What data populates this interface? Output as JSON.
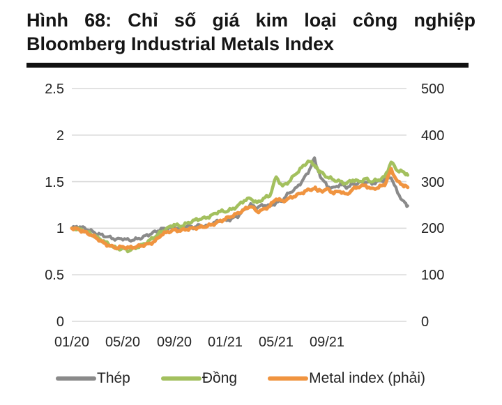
{
  "figure": {
    "title_line1": "Hình 68: Chỉ số giá kim loại công nghiệp",
    "title_line2": "Bloomberg Industrial Metals Index"
  },
  "chart_data": {
    "type": "line",
    "title": "Hình 68: Chỉ số giá kim loại công nghiệp Bloomberg Industrial Metals Index",
    "xlabel": "",
    "ylabel_left": "",
    "ylabel_right": "",
    "grid": true,
    "legend_position": "bottom",
    "x_axis": {
      "ticks": [
        "01/20",
        "05/20",
        "09/20",
        "01/21",
        "05/21",
        "09/21"
      ],
      "tick_months": [
        0,
        4,
        8,
        12,
        16,
        20
      ],
      "range_months": [
        0,
        26.3
      ]
    },
    "y_axis_left": {
      "ticks": [
        "2.5",
        "2",
        "1.5",
        "1",
        "0.5",
        "0"
      ],
      "range": [
        0,
        2.5
      ]
    },
    "y_axis_right": {
      "ticks": [
        "500",
        "400",
        "300",
        "200",
        "100",
        "0"
      ],
      "range": [
        0,
        500
      ]
    },
    "x_months": [
      0,
      0.5,
      1,
      1.5,
      2,
      2.5,
      3,
      3.5,
      4,
      4.5,
      5,
      5.5,
      6,
      6.5,
      7,
      7.5,
      8,
      8.5,
      9,
      9.5,
      10,
      10.5,
      11,
      11.5,
      12,
      12.5,
      13,
      13.5,
      14,
      14.5,
      15,
      15.5,
      16,
      16.5,
      17,
      17.5,
      18,
      18.5,
      19,
      19.25,
      19.5,
      20,
      20.5,
      21,
      21.5,
      22,
      22.5,
      23,
      23.5,
      24,
      24.5,
      25,
      25.5,
      26,
      26.3
    ],
    "x_start_label": "01/20",
    "series": [
      {
        "name": "Thép",
        "axis": "left",
        "color": "#8a8a8a",
        "values": [
          1.0,
          1.02,
          1.0,
          0.97,
          0.94,
          0.92,
          0.9,
          0.88,
          0.89,
          0.87,
          0.88,
          0.9,
          0.93,
          0.96,
          0.99,
          1.0,
          1.01,
          1.0,
          1.02,
          1.01,
          1.03,
          1.02,
          1.05,
          1.08,
          1.08,
          1.1,
          1.13,
          1.2,
          1.25,
          1.22,
          1.25,
          1.24,
          1.27,
          1.3,
          1.38,
          1.42,
          1.5,
          1.6,
          1.75,
          1.62,
          1.55,
          1.45,
          1.43,
          1.47,
          1.44,
          1.47,
          1.49,
          1.5,
          1.48,
          1.5,
          1.52,
          1.55,
          1.38,
          1.28,
          1.24
        ]
      },
      {
        "name": "Đồng",
        "axis": "left",
        "color": "#a3c05e",
        "values": [
          1.0,
          0.99,
          0.97,
          0.94,
          0.9,
          0.86,
          0.82,
          0.78,
          0.78,
          0.76,
          0.79,
          0.82,
          0.86,
          0.91,
          0.96,
          1.0,
          1.04,
          1.02,
          1.05,
          1.08,
          1.1,
          1.11,
          1.14,
          1.18,
          1.18,
          1.2,
          1.24,
          1.3,
          1.32,
          1.27,
          1.32,
          1.35,
          1.55,
          1.45,
          1.5,
          1.58,
          1.65,
          1.72,
          1.68,
          1.63,
          1.6,
          1.55,
          1.52,
          1.5,
          1.48,
          1.52,
          1.5,
          1.53,
          1.5,
          1.52,
          1.55,
          1.71,
          1.62,
          1.6,
          1.57
        ]
      },
      {
        "name": "Metal index (phải)",
        "axis": "right",
        "color": "#f09440",
        "values": [
          200,
          198,
          192,
          186,
          178,
          168,
          162,
          158,
          160,
          158,
          160,
          163,
          166,
          172,
          186,
          192,
          196,
          195,
          198,
          200,
          202,
          204,
          208,
          214,
          220,
          226,
          232,
          240,
          248,
          236,
          240,
          248,
          264,
          258,
          264,
          270,
          276,
          282,
          286,
          282,
          280,
          284,
          276,
          280,
          272,
          284,
          290,
          292,
          284,
          288,
          294,
          326,
          300,
          292,
          288
        ]
      }
    ],
    "colors": {
      "grid": "#d9d9d9",
      "text": "#232323",
      "title_bar": "#111111"
    }
  }
}
